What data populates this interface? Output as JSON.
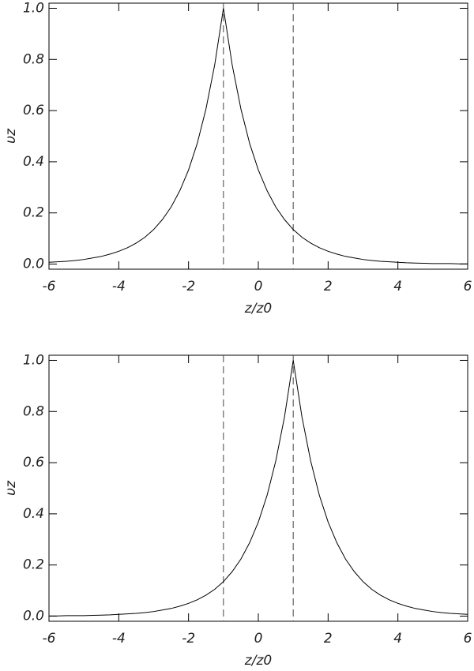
{
  "chart_data": [
    {
      "type": "line",
      "xlabel": "z/z0",
      "ylabel": "υz",
      "x": [
        -6,
        -5.75,
        -5.5,
        -5.25,
        -5,
        -4.75,
        -4.5,
        -4.25,
        -4,
        -3.75,
        -3.5,
        -3.25,
        -3,
        -2.75,
        -2.5,
        -2.25,
        -2,
        -1.75,
        -1.5,
        -1.25,
        -1,
        -0.75,
        -0.5,
        -0.25,
        0,
        0.25,
        0.5,
        0.75,
        1,
        1.25,
        1.5,
        1.75,
        2,
        2.25,
        2.5,
        2.75,
        3,
        3.25,
        3.5,
        3.75,
        4,
        4.25,
        4.5,
        4.75,
        5,
        5.25,
        5.5,
        5.75,
        6
      ],
      "values": [
        0.007,
        0.009,
        0.011,
        0.014,
        0.018,
        0.024,
        0.03,
        0.039,
        0.05,
        0.064,
        0.082,
        0.105,
        0.135,
        0.174,
        0.223,
        0.287,
        0.368,
        0.472,
        0.607,
        0.779,
        1,
        0.779,
        0.607,
        0.472,
        0.368,
        0.287,
        0.223,
        0.174,
        0.135,
        0.105,
        0.082,
        0.064,
        0.05,
        0.039,
        0.03,
        0.024,
        0.018,
        0.014,
        0.011,
        0.009,
        0.007,
        0.005,
        0.004,
        0.003,
        0.002,
        0.002,
        0.002,
        0.001,
        0.001
      ],
      "color": "#000000",
      "vlines": [
        -1,
        1
      ],
      "xlim": [
        -6,
        6
      ],
      "ylim": [
        -0.02,
        1.02
      ],
      "xticks": [
        -6,
        -4,
        -2,
        0,
        2,
        4,
        6
      ],
      "yticks": [
        {
          "value": 0,
          "label": "0.0"
        },
        0.2,
        0.4,
        0.6,
        0.8,
        {
          "value": 1,
          "label": "1.0"
        }
      ]
    },
    {
      "type": "line",
      "xlabel": "z/z0",
      "ylabel": "υz",
      "x": [
        -6,
        -5.75,
        -5.5,
        -5.25,
        -5,
        -4.75,
        -4.5,
        -4.25,
        -4,
        -3.75,
        -3.5,
        -3.25,
        -3,
        -2.75,
        -2.5,
        -2.25,
        -2,
        -1.75,
        -1.5,
        -1.25,
        -1,
        -0.75,
        -0.5,
        -0.25,
        0,
        0.25,
        0.5,
        0.75,
        1,
        1.25,
        1.5,
        1.75,
        2,
        2.25,
        2.5,
        2.75,
        3,
        3.25,
        3.5,
        3.75,
        4,
        4.25,
        4.5,
        4.75,
        5,
        5.25,
        5.5,
        5.75,
        6
      ],
      "values": [
        0.001,
        0.001,
        0.002,
        0.002,
        0.002,
        0.003,
        0.004,
        0.005,
        0.007,
        0.009,
        0.011,
        0.014,
        0.018,
        0.024,
        0.03,
        0.039,
        0.05,
        0.064,
        0.082,
        0.105,
        0.135,
        0.174,
        0.223,
        0.287,
        0.368,
        0.472,
        0.607,
        0.779,
        1,
        0.779,
        0.607,
        0.472,
        0.368,
        0.287,
        0.223,
        0.174,
        0.135,
        0.105,
        0.082,
        0.064,
        0.05,
        0.039,
        0.03,
        0.024,
        0.018,
        0.014,
        0.011,
        0.009,
        0.007
      ],
      "color": "#000000",
      "vlines": [
        -1,
        1
      ],
      "xlim": [
        -6,
        6
      ],
      "ylim": [
        -0.02,
        1.02
      ],
      "xticks": [
        -6,
        -4,
        -2,
        0,
        2,
        4,
        6
      ],
      "yticks": [
        {
          "value": 0,
          "label": "0.0"
        },
        0.2,
        0.4,
        0.6,
        0.8,
        {
          "value": 1,
          "label": "1.0"
        }
      ]
    }
  ]
}
